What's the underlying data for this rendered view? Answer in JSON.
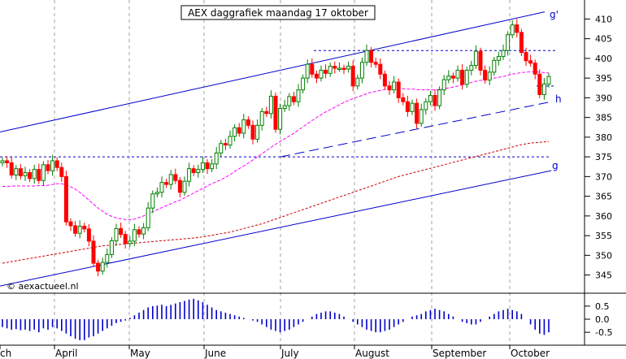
{
  "chart_data": {
    "type": "candlestick",
    "title": "AEX daggrafiek maandag 17 oktober",
    "watermark": "© aexactueel.nl",
    "x_month_labels": [
      "ch",
      "April",
      "May",
      "June",
      "July",
      "August",
      "September",
      "October"
    ],
    "y_ticks": [
      345,
      350,
      355,
      360,
      365,
      370,
      375,
      380,
      385,
      390,
      395,
      400,
      405,
      410
    ],
    "ylim": [
      341,
      414
    ],
    "osc_ticks": [
      "0.5",
      "0.0",
      "-0.5"
    ],
    "osc_ylim": [
      -0.9,
      0.9
    ],
    "line_labels": {
      "upper": "g'",
      "mid": "h",
      "lower": "g"
    },
    "colors": {
      "up": "#008000",
      "down": "#ff0000",
      "channel": "#0000cc",
      "ma_short": "#ff00ff",
      "ma_long": "#cc0000",
      "grid": "#a0a0a0",
      "osc": "#0000cc"
    },
    "price_close": [
      374.0,
      373.5,
      370.4,
      372.0,
      370.2,
      371.0,
      369.5,
      371.8,
      369.0,
      373.0,
      371.5,
      374.0,
      372.3,
      370.0,
      358.5,
      357.5,
      355.6,
      357.4,
      356.7,
      353.6,
      348.0,
      346.0,
      348.2,
      350.2,
      353.7,
      356.8,
      355.3,
      353.0,
      353.6,
      356.5,
      355.4,
      357.0,
      362.0,
      365.6,
      366.0,
      368.5,
      368.0,
      370.5,
      369.0,
      366.0,
      368.8,
      372.0,
      371.0,
      371.8,
      373.5,
      372.0,
      373.2,
      376.0,
      378.4,
      378.0,
      380.2,
      382.4,
      381.0,
      384.4,
      383.0,
      379.5,
      383.0,
      386.5,
      386.0,
      390.4,
      382.0,
      387.3,
      388.0,
      390.3,
      389.0,
      392.0,
      395.0,
      398.5,
      396.0,
      395.0,
      397.0,
      396.2,
      398.0,
      397.5,
      397.5,
      397.3,
      398.0,
      393.0,
      395.0,
      399.0,
      402.0,
      399.0,
      398.5,
      396.0,
      393.0,
      392.0,
      394.0,
      390.0,
      389.0,
      386.5,
      388.6,
      383.5,
      387.0,
      389.0,
      390.6,
      388.0,
      392.0,
      394.6,
      395.5,
      395.0,
      397.0,
      393.4,
      397.0,
      398.2,
      401.8,
      397.0,
      394.5,
      396.5,
      399.5,
      400.5,
      402.0,
      406.0,
      408.5,
      406.6,
      401.5,
      399.4,
      398.8,
      396.0,
      390.8,
      393.5,
      395.4
    ],
    "ma_short": [
      367.5,
      367.5,
      367.6,
      367.6,
      367.6,
      367.6,
      367.6,
      367.6,
      367.7,
      367.7,
      367.8,
      368.0,
      368.2,
      368.2,
      367.8,
      367.4,
      366.8,
      366.0,
      365.0,
      364.0,
      363.0,
      362.0,
      361.2,
      360.4,
      359.9,
      359.5,
      359.3,
      359.1,
      359.0,
      359.2,
      359.6,
      360.0,
      360.5,
      361.1,
      361.6,
      362.1,
      362.6,
      363.1,
      363.6,
      364.0,
      364.6,
      365.2,
      365.8,
      366.4,
      367.0,
      367.6,
      368.2,
      368.7,
      369.2,
      369.8,
      370.5,
      371.3,
      372.0,
      372.7,
      373.4,
      374.2,
      375.0,
      375.8,
      376.6,
      377.4,
      378.2,
      378.9,
      379.6,
      380.3,
      381.0,
      381.8,
      382.6,
      383.4,
      384.2,
      385.0,
      385.7,
      386.4,
      387.0,
      387.6,
      388.2,
      388.8,
      389.3,
      389.8,
      390.2,
      390.6,
      391.0,
      391.4,
      391.6,
      391.9,
      392.1,
      392.2,
      392.3,
      392.3,
      392.3,
      392.2,
      392.2,
      392.1,
      392.0,
      392.0,
      392.0,
      392.0,
      392.1,
      392.3,
      392.5,
      392.7,
      393.0,
      393.3,
      393.6,
      393.9,
      394.2,
      394.4,
      394.6,
      394.8,
      395.0,
      395.2,
      395.4,
      395.7,
      396.0,
      396.2,
      396.4,
      396.5,
      396.6,
      396.6,
      396.5,
      396.4,
      396.3
    ],
    "ma_long": [
      348.0,
      348.2,
      348.4,
      348.6,
      348.8,
      349.0,
      349.2,
      349.4,
      349.6,
      349.8,
      350.0,
      350.2,
      350.4,
      350.6,
      350.8,
      351.0,
      351.2,
      351.4,
      351.6,
      351.8,
      352.0,
      352.2,
      352.4,
      352.5,
      352.6,
      352.7,
      352.8,
      352.9,
      353.0,
      353.1,
      353.2,
      353.3,
      353.4,
      353.5,
      353.6,
      353.7,
      353.8,
      353.9,
      354.0,
      354.1,
      354.2,
      354.3,
      354.4,
      354.5,
      354.7,
      354.9,
      355.1,
      355.3,
      355.5,
      355.7,
      355.9,
      356.2,
      356.5,
      356.8,
      357.1,
      357.4,
      357.7,
      358.0,
      358.4,
      358.8,
      359.2,
      359.6,
      360.0,
      360.4,
      360.8,
      361.2,
      361.6,
      362.0,
      362.4,
      362.8,
      363.2,
      363.6,
      364.0,
      364.4,
      364.8,
      365.2,
      365.6,
      366.0,
      366.4,
      366.8,
      367.2,
      367.6,
      368.0,
      368.4,
      368.8,
      369.2,
      369.6,
      370.0,
      370.3,
      370.6,
      370.9,
      371.2,
      371.5,
      371.8,
      372.1,
      372.4,
      372.7,
      373.0,
      373.3,
      373.6,
      373.9,
      374.2,
      374.5,
      374.8,
      375.1,
      375.4,
      375.7,
      376.0,
      376.3,
      376.6,
      376.9,
      377.2,
      377.5,
      377.8,
      378.1,
      378.3,
      378.5,
      378.6,
      378.7,
      378.8,
      378.9
    ],
    "oscillator": [
      -0.3,
      -0.35,
      -0.4,
      -0.38,
      -0.42,
      -0.4,
      -0.45,
      -0.4,
      -0.5,
      -0.35,
      -0.4,
      -0.3,
      -0.35,
      -0.45,
      -0.55,
      -0.65,
      -0.75,
      -0.8,
      -0.8,
      -0.7,
      -0.65,
      -0.55,
      -0.45,
      -0.35,
      -0.25,
      -0.15,
      -0.1,
      -0.05,
      0.05,
      0.15,
      0.25,
      0.35,
      0.45,
      0.5,
      0.52,
      0.55,
      0.5,
      0.55,
      0.6,
      0.65,
      0.7,
      0.75,
      0.78,
      0.72,
      0.65,
      0.55,
      0.45,
      0.35,
      0.3,
      0.25,
      0.2,
      0.15,
      0.1,
      0.05,
      0.0,
      -0.05,
      -0.1,
      -0.2,
      -0.3,
      -0.4,
      -0.45,
      -0.5,
      -0.45,
      -0.4,
      -0.3,
      -0.2,
      -0.1,
      0.0,
      0.1,
      0.2,
      0.25,
      0.3,
      0.3,
      0.25,
      0.2,
      0.1,
      0.0,
      -0.1,
      -0.2,
      -0.3,
      -0.4,
      -0.45,
      -0.5,
      -0.5,
      -0.45,
      -0.4,
      -0.3,
      -0.2,
      -0.1,
      0.0,
      0.1,
      0.15,
      0.2,
      0.3,
      0.35,
      0.4,
      0.35,
      0.3,
      0.2,
      0.1,
      0.0,
      -0.1,
      -0.15,
      -0.2,
      -0.2,
      -0.1,
      0.0,
      0.1,
      0.2,
      0.3,
      0.35,
      0.4,
      0.35,
      0.3,
      0.2,
      0.0,
      -0.2,
      -0.4,
      -0.55,
      -0.6,
      -0.5
    ]
  }
}
